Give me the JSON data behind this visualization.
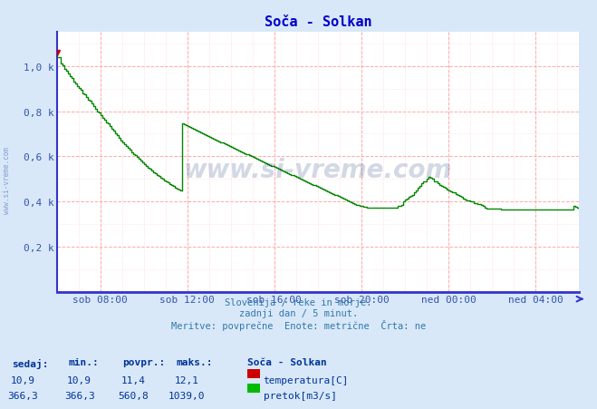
{
  "title": "Soča - Solkan",
  "title_color": "#0000cc",
  "bg_color": "#d8e8f8",
  "plot_bg_color": "#ffffff",
  "grid_color": "#ffaaaa",
  "grid_minor_color": "#ffcccc",
  "axis_color": "#3333cc",
  "line_color": "#008800",
  "line_width": 1.0,
  "ylabel_color": "#3355aa",
  "xlabel_color": "#3355aa",
  "ytick_labels": [
    "0,2 k",
    "0,4 k",
    "0,6 k",
    "0,8 k",
    "1,0 k"
  ],
  "ytick_values": [
    200,
    400,
    600,
    800,
    1000
  ],
  "ylim": [
    0,
    1150
  ],
  "xlim_min": 0,
  "xlim_max": 288,
  "xtick_values": [
    24,
    72,
    120,
    168,
    216,
    264
  ],
  "xtick_labels": [
    "sob 08:00",
    "sob 12:00",
    "sob 16:00",
    "sob 20:00",
    "ned 00:00",
    "ned 04:00"
  ],
  "subtitle_lines": [
    "Slovenija / reke in morje.",
    "zadnji dan / 5 minut.",
    "Meritve: povprečne  Enote: metrične  Črta: ne"
  ],
  "subtitle_color": "#3377aa",
  "watermark": "www.si-vreme.com",
  "watermark_color": "#0a2a6a",
  "watermark_alpha": 0.18,
  "side_watermark_color": "#3355aa",
  "side_watermark_alpha": 0.5,
  "legend_header_color": "#003399",
  "temp_values": [
    "10,9",
    "10,9",
    "11,4",
    "12,1"
  ],
  "flow_values": [
    "366,3",
    "366,3",
    "560,8",
    "1039,0"
  ],
  "temp_color": "#cc0000",
  "flow_color": "#00bb00",
  "station_label": "Soča - Solkan",
  "temp_label": "temperatura[C]",
  "flow_label": "pretok[m3/s]",
  "flow_data_y": [
    1039,
    1039,
    1010,
    1002,
    985,
    980,
    968,
    956,
    945,
    930,
    922,
    910,
    903,
    895,
    880,
    873,
    862,
    852,
    845,
    835,
    822,
    810,
    800,
    793,
    783,
    772,
    762,
    751,
    744,
    733,
    722,
    712,
    700,
    692,
    682,
    670,
    660,
    652,
    645,
    638,
    628,
    618,
    610,
    604,
    596,
    588,
    581,
    573,
    566,
    558,
    551,
    544,
    538,
    531,
    524,
    518,
    512,
    506,
    500,
    495,
    490,
    484,
    478,
    475,
    470,
    463,
    459,
    453,
    449,
    745,
    742,
    738,
    735,
    730,
    727,
    722,
    718,
    714,
    710,
    706,
    702,
    698,
    694,
    691,
    687,
    683,
    679,
    675,
    671,
    667,
    663,
    660,
    656,
    652,
    650,
    645,
    641,
    638,
    634,
    630,
    626,
    622,
    619,
    615,
    611,
    608,
    604,
    600,
    596,
    593,
    589,
    585,
    582,
    578,
    574,
    571,
    567,
    563,
    559,
    556,
    552,
    548,
    545,
    541,
    537,
    534,
    530,
    527,
    523,
    519,
    516,
    512,
    508,
    505,
    501,
    497,
    494,
    490,
    486,
    483,
    479,
    475,
    472,
    468,
    464,
    461,
    457,
    453,
    450,
    446,
    442,
    439,
    435,
    431,
    428,
    424,
    420,
    417,
    413,
    409,
    406,
    402,
    398,
    395,
    391,
    387,
    384,
    380,
    380,
    377,
    377,
    374,
    374,
    372,
    372,
    372,
    372,
    372,
    375,
    375,
    373,
    373,
    373,
    373,
    373,
    373,
    373,
    373,
    380,
    380,
    385,
    400,
    410,
    415,
    420,
    425,
    430,
    440,
    450,
    460,
    470,
    480,
    490,
    490,
    500,
    510,
    505,
    500,
    490,
    490,
    480,
    475,
    470,
    465,
    460,
    455,
    450,
    445,
    440,
    440,
    435,
    430,
    425,
    420,
    415,
    410,
    405,
    405,
    400,
    400,
    395,
    395,
    390,
    390,
    385,
    380,
    375,
    370,
    370,
    370,
    370,
    370,
    370,
    370,
    370,
    366,
    366,
    366,
    366,
    366,
    366,
    366,
    366,
    366,
    366,
    366,
    366,
    366,
    366,
    366,
    366,
    366,
    366,
    366,
    366,
    366,
    366,
    366,
    366,
    366,
    366,
    366,
    366,
    366,
    366,
    366,
    366,
    366,
    366,
    366,
    366,
    366,
    366,
    366,
    366,
    380,
    378,
    375,
    370
  ]
}
